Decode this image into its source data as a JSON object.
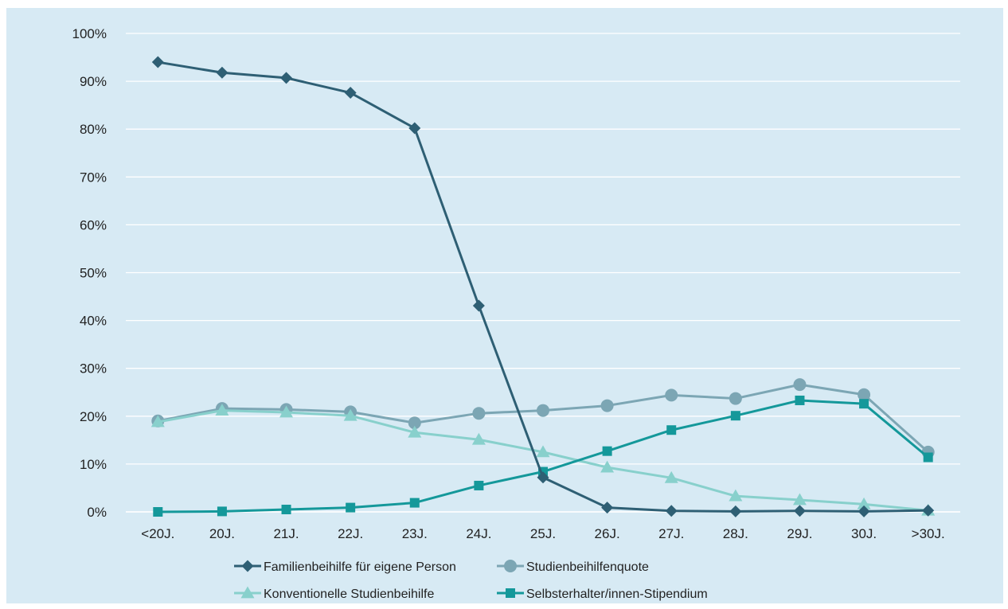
{
  "chart_data": {
    "type": "line",
    "categories": [
      "<20J.",
      "20J.",
      "21J.",
      "22J.",
      "23J.",
      "24J.",
      "25J.",
      "26J.",
      "27J.",
      "28J.",
      "29J.",
      "30J.",
      ">30J."
    ],
    "ylim": [
      0,
      100
    ],
    "y_ticks": [
      "0%",
      "10%",
      "20%",
      "30%",
      "40%",
      "50%",
      "60%",
      "70%",
      "80%",
      "90%",
      "100%"
    ],
    "y_tick_values": [
      0,
      10,
      20,
      30,
      40,
      50,
      60,
      70,
      80,
      90,
      100
    ],
    "grid": true,
    "legend_position": "bottom",
    "title": "",
    "xlabel": "",
    "ylabel": "",
    "series": [
      {
        "name": "Familienbeihilfe für eigene Person",
        "color": "#2e5f74",
        "marker": "diamond",
        "values": [
          94,
          91.8,
          90.7,
          87.6,
          80.2,
          43.1,
          7.2,
          0.9,
          0.2,
          0.1,
          0.2,
          0.1,
          0.3
        ]
      },
      {
        "name": "Studienbeihilfenquote",
        "color": "#7ca6b4",
        "marker": "circle",
        "values": [
          19,
          21.6,
          21.4,
          20.9,
          18.6,
          20.6,
          21.2,
          22.2,
          24.4,
          23.7,
          26.6,
          24.5,
          12.5
        ]
      },
      {
        "name": "Konventionelle Studienbeihilfe",
        "color": "#88d0cc",
        "marker": "triangle",
        "values": [
          18.8,
          21.2,
          20.8,
          20.1,
          16.6,
          15.1,
          12.5,
          9.3,
          7.1,
          3.3,
          2.5,
          1.6,
          0.3
        ]
      },
      {
        "name": "Selbsterhalter/innen-Stipendium",
        "color": "#14989a",
        "marker": "square",
        "values": [
          0,
          0.1,
          0.5,
          0.9,
          1.9,
          5.5,
          8.4,
          12.7,
          17.1,
          20.1,
          23.3,
          22.6,
          11.4
        ]
      }
    ]
  }
}
